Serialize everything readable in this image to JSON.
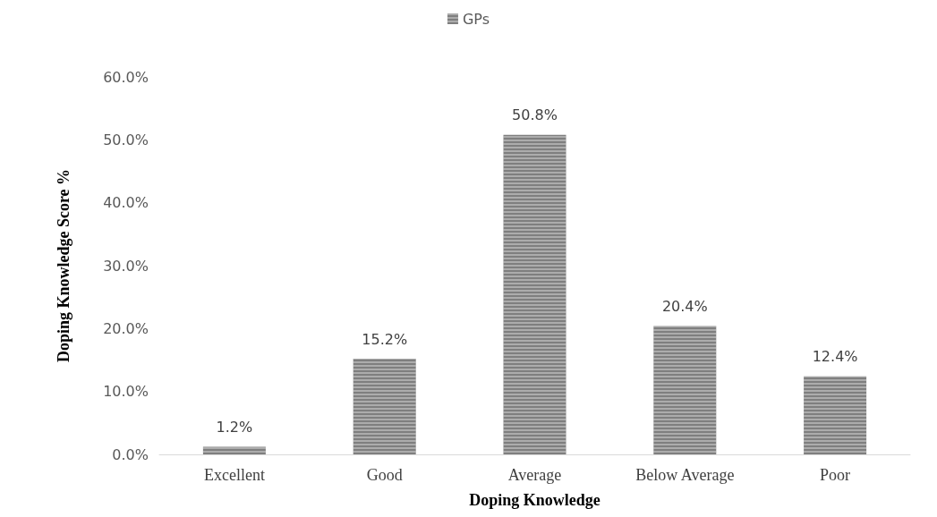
{
  "chart_data": {
    "type": "bar",
    "xlabel": "Doping Knowledge",
    "ylabel": "Doping Knowledge Score %",
    "categories": [
      "Excellent",
      "Good",
      "Average",
      "Below Average",
      "Poor"
    ],
    "series": [
      {
        "name": "GPs",
        "color": "#7f7f7f",
        "values": [
          1.2,
          15.2,
          50.8,
          20.4,
          12.4
        ],
        "value_labels": [
          "1.2%",
          "15.2%",
          "50.8%",
          "20.4%",
          "12.4%"
        ]
      }
    ],
    "ylim": [
      0,
      60
    ],
    "yticks": [
      {
        "value": 0,
        "label": "0.0%"
      },
      {
        "value": 10,
        "label": "10.0%"
      },
      {
        "value": 20,
        "label": "20.0%"
      },
      {
        "value": 30,
        "label": "30.0%"
      },
      {
        "value": 40,
        "label": "40.0%"
      },
      {
        "value": 50,
        "label": "50.0%"
      },
      {
        "value": 60,
        "label": "60.0%"
      }
    ],
    "grid": false,
    "legend": "top"
  }
}
